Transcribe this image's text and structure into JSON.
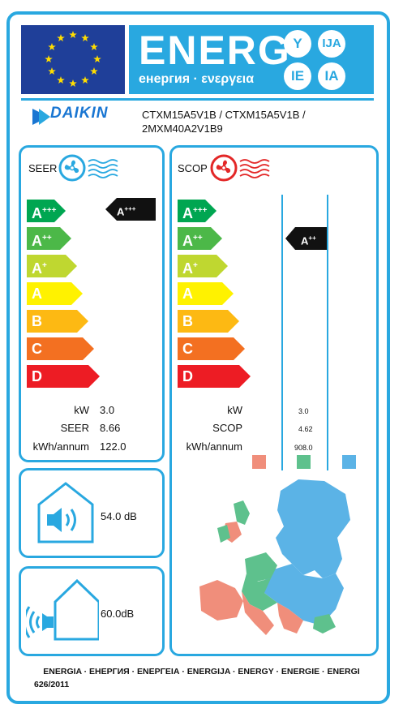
{
  "header": {
    "energy_title": "ENERG",
    "energy_subtitle": "енергия · ενεργεια",
    "languages": [
      "Y",
      "IJA",
      "IE",
      "IA"
    ]
  },
  "manufacturer": {
    "brand": "DAIKIN",
    "model_line1": "CTXM15A5V1B / CTXM15A5V1B /",
    "model_line2": "2MXM40A2V1B9"
  },
  "scale": {
    "classes": [
      "A+++",
      "A++",
      "A+",
      "A",
      "B",
      "C",
      "D"
    ],
    "colors": [
      "#00a651",
      "#4cb848",
      "#bfd730",
      "#fff200",
      "#fdb913",
      "#f37021",
      "#ed1c24"
    ]
  },
  "cooling": {
    "label": "SEER",
    "rating_class": "A+++",
    "kw_label": "kW",
    "kw_value": "3.0",
    "seer_label": "SEER",
    "seer_value": "8.66",
    "annual_label": "kWh/annum",
    "annual_value": "122.0"
  },
  "heating": {
    "label": "SCOP",
    "rating_class": "A++",
    "kw_label": "kW",
    "kw_value": "3.0",
    "scop_label": "SCOP",
    "scop_value": "4.62",
    "annual_label": "kWh/annum",
    "annual_value": "908.0",
    "climate_colors": [
      "#f08e7b",
      "#5ec18d",
      "#5bb3e6"
    ]
  },
  "noise": {
    "indoor": "54.0",
    "outdoor": "60.0",
    "unit": "dB"
  },
  "footer": {
    "energy_line": "ENERGIA · ЕНЕРГИЯ · ΕΝΕΡΓΕΙΑ · ENERGIJA · ENERGY · ENERGIE · ENERGI",
    "regulation": "626/2011"
  }
}
